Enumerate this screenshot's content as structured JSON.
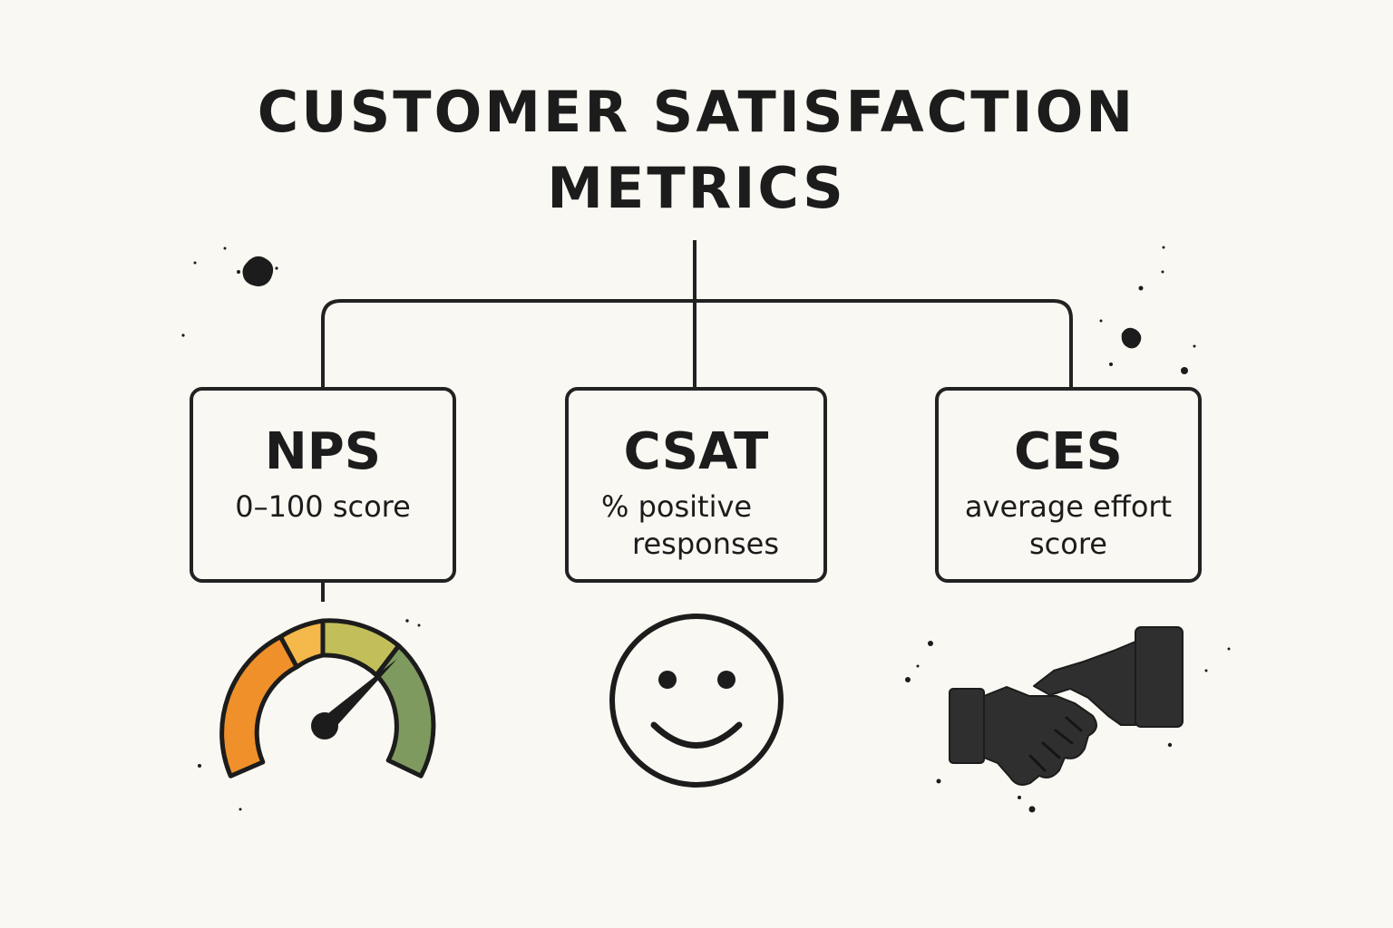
{
  "title": {
    "line1": "CUSTOMER SATISFACTION",
    "line2": "METRICS"
  },
  "metrics": [
    {
      "name": "NPS",
      "description": "0–100 score",
      "icon": "speedometer-gauge-icon"
    },
    {
      "name": "CSAT",
      "description_line1": "% positive",
      "description_line2": "responses",
      "icon": "smiley-face-icon"
    },
    {
      "name": "CES",
      "description_line1": "average effort",
      "description_line2": "score",
      "icon": "handshake-icon"
    }
  ],
  "colors": {
    "background": "#faf8f3",
    "ink": "#1c1c1c",
    "gauge_orange": "#f0902a",
    "gauge_light_orange": "#f5b84a",
    "gauge_yellow_green": "#c2bf5a",
    "gauge_green": "#7f9a5f"
  }
}
